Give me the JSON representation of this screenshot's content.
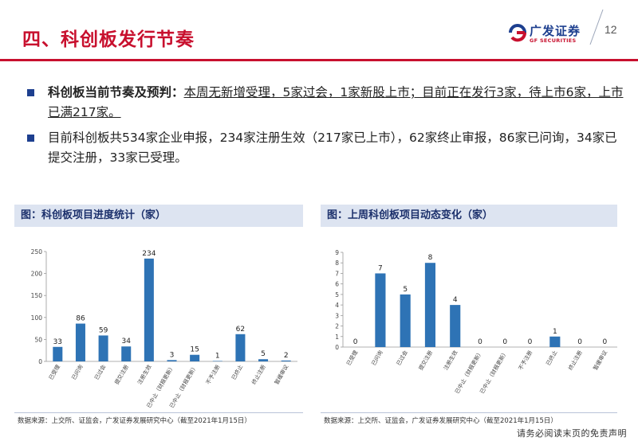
{
  "header": {
    "title": "四、科创板发行节奏",
    "logo_cn": "广发证券",
    "logo_en": "GF SECURITIES",
    "page_number": "12",
    "accent_color": "#c8102e",
    "brand_color": "#1d3f8f"
  },
  "bullets": [
    {
      "lead": "科创板当前节奏及预判：",
      "text": "本周无新增受理，5家过会，1家新股上市；目前正在发行3家，待上市6家，上市已满217家。"
    },
    {
      "lead": "",
      "text": "目前科创板共534家企业申报，234家注册生效（217家已上市），62家终止审报，86家已问询，34家已提交注册，33家已受理。"
    }
  ],
  "chart_data": [
    {
      "type": "bar",
      "title": "图：科创板项目进度统计（家）",
      "categories": [
        "已受理",
        "已问询",
        "已过会",
        "提交注册",
        "注册生效",
        "已中止（财报更新）",
        "已中止（财报更新）",
        "不予注册",
        "已终止",
        "终止注册",
        "暂缓审议"
      ],
      "values": [
        33,
        86,
        59,
        34,
        234,
        3,
        15,
        1,
        62,
        5,
        2
      ],
      "yticks": [
        "0",
        "50",
        "100",
        "150",
        "200",
        "250"
      ],
      "ylim": [
        0,
        250
      ],
      "bar_color": "#2e73b5",
      "source": "数据来源：上交所、证监会，广发证券发展研究中心（截至2021年1月15日）"
    },
    {
      "type": "bar",
      "title": "图：上周科创板项目动态变化（家）",
      "categories": [
        "已受理",
        "已问询",
        "已过会",
        "提交注册",
        "注册生效",
        "已中止（财报更新）",
        "已中止（财报更新）",
        "不予注册",
        "已终止",
        "终止注册",
        "暂缓审议"
      ],
      "values": [
        0,
        7,
        5,
        8,
        4,
        0,
        0,
        0,
        1,
        0,
        0
      ],
      "yticks": [
        "0",
        "1",
        "2",
        "3",
        "4",
        "5",
        "6",
        "7",
        "8",
        "9"
      ],
      "ylim": [
        0,
        9
      ],
      "bar_color": "#2e73b5",
      "source": "数据来源：上交所、证监会，广发证券发展研究中心（截至2021年1月15日）"
    }
  ],
  "footer": {
    "disclaimer": "请务必阅读末页的免责声明"
  }
}
